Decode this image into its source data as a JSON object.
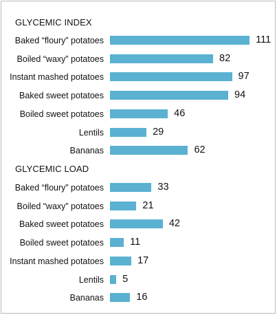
{
  "chart_data": [
    {
      "type": "bar",
      "orientation": "horizontal",
      "title": "GLYCEMIC INDEX",
      "categories": [
        "Baked “floury” potatoes",
        "Boiled “waxy” potatoes",
        "Instant mashed potatoes",
        "Baked sweet potatoes",
        "Boiled sweet potatoes",
        "Lentils",
        "Bananas"
      ],
      "values": [
        111,
        82,
        97,
        94,
        46,
        29,
        62
      ],
      "xlim": [
        0,
        115
      ],
      "grid": false,
      "bar_color": "#5ab1d1"
    },
    {
      "type": "bar",
      "orientation": "horizontal",
      "title": "GLYCEMIC LOAD",
      "categories": [
        "Baked “floury” potatoes",
        "Boiled “waxy” potatoes",
        "Baked sweet potatoes",
        "Boiled sweet potatoes",
        "Instant mashed potatoes",
        "Lentils",
        "Bananas"
      ],
      "values": [
        33,
        21,
        42,
        11,
        17,
        5,
        16
      ],
      "xlim": [
        0,
        115
      ],
      "grid": false,
      "bar_color": "#5ab1d1"
    }
  ]
}
